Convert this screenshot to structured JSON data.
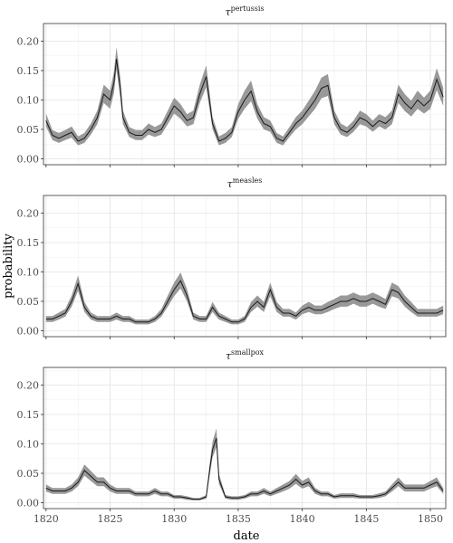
{
  "chart_data": {
    "type": "line",
    "xlabel": "date",
    "ylabel": "probability",
    "xlim": [
      1819.8,
      1851.2
    ],
    "ylim": [
      -0.01,
      0.23
    ],
    "x_ticks": [
      1820,
      1825,
      1830,
      1835,
      1840,
      1845,
      1850
    ],
    "y_ticks": [
      0.0,
      0.05,
      0.1,
      0.15,
      0.2
    ],
    "y_tick_labels": [
      "0.00",
      "0.05",
      "0.10",
      "0.15",
      "0.20"
    ],
    "grid": true,
    "band_color": "#999999",
    "line_color": "#1a1a1a",
    "panels": [
      {
        "label_base": "τ",
        "label_sup": "pertussis",
        "x": [
          1820.0,
          1820.5,
          1821.0,
          1821.5,
          1822.0,
          1822.5,
          1823.0,
          1823.5,
          1824.0,
          1824.5,
          1825.0,
          1825.3,
          1825.5,
          1825.8,
          1826.0,
          1826.5,
          1827.0,
          1827.5,
          1828.0,
          1828.5,
          1829.0,
          1829.5,
          1830.0,
          1830.5,
          1831.0,
          1831.5,
          1832.0,
          1832.5,
          1833.0,
          1833.5,
          1834.0,
          1834.5,
          1835.0,
          1835.5,
          1836.0,
          1836.5,
          1837.0,
          1837.5,
          1838.0,
          1838.5,
          1839.0,
          1839.5,
          1840.0,
          1840.5,
          1841.0,
          1841.5,
          1842.0,
          1842.5,
          1843.0,
          1843.5,
          1844.0,
          1844.5,
          1845.0,
          1845.5,
          1846.0,
          1846.5,
          1847.0,
          1847.5,
          1848.0,
          1848.5,
          1849.0,
          1849.5,
          1850.0,
          1850.5,
          1851.0
        ],
        "y": [
          0.065,
          0.04,
          0.035,
          0.04,
          0.045,
          0.03,
          0.035,
          0.05,
          0.07,
          0.11,
          0.1,
          0.13,
          0.17,
          0.12,
          0.07,
          0.045,
          0.04,
          0.04,
          0.05,
          0.045,
          0.05,
          0.07,
          0.09,
          0.08,
          0.065,
          0.07,
          0.11,
          0.14,
          0.06,
          0.03,
          0.035,
          0.045,
          0.08,
          0.1,
          0.115,
          0.08,
          0.06,
          0.055,
          0.035,
          0.03,
          0.045,
          0.06,
          0.07,
          0.085,
          0.1,
          0.12,
          0.125,
          0.07,
          0.05,
          0.045,
          0.055,
          0.07,
          0.065,
          0.055,
          0.065,
          0.06,
          0.07,
          0.11,
          0.095,
          0.085,
          0.1,
          0.09,
          0.1,
          0.135,
          0.105
        ],
        "lower": [
          0.055,
          0.032,
          0.027,
          0.032,
          0.036,
          0.023,
          0.027,
          0.041,
          0.059,
          0.095,
          0.085,
          0.112,
          0.152,
          0.103,
          0.059,
          0.037,
          0.032,
          0.032,
          0.041,
          0.037,
          0.041,
          0.059,
          0.077,
          0.068,
          0.055,
          0.059,
          0.095,
          0.122,
          0.05,
          0.023,
          0.027,
          0.037,
          0.068,
          0.085,
          0.098,
          0.068,
          0.05,
          0.046,
          0.027,
          0.023,
          0.037,
          0.05,
          0.059,
          0.072,
          0.085,
          0.103,
          0.107,
          0.059,
          0.041,
          0.037,
          0.046,
          0.059,
          0.055,
          0.046,
          0.055,
          0.05,
          0.059,
          0.095,
          0.081,
          0.072,
          0.085,
          0.077,
          0.085,
          0.117,
          0.09
        ],
        "upper": [
          0.077,
          0.049,
          0.044,
          0.049,
          0.055,
          0.038,
          0.044,
          0.06,
          0.082,
          0.126,
          0.116,
          0.148,
          0.19,
          0.138,
          0.082,
          0.054,
          0.049,
          0.049,
          0.06,
          0.054,
          0.06,
          0.082,
          0.104,
          0.093,
          0.076,
          0.082,
          0.126,
          0.159,
          0.071,
          0.038,
          0.044,
          0.054,
          0.093,
          0.116,
          0.133,
          0.093,
          0.071,
          0.065,
          0.044,
          0.038,
          0.054,
          0.071,
          0.082,
          0.099,
          0.116,
          0.138,
          0.144,
          0.082,
          0.06,
          0.054,
          0.065,
          0.082,
          0.076,
          0.065,
          0.076,
          0.071,
          0.082,
          0.126,
          0.11,
          0.099,
          0.116,
          0.104,
          0.116,
          0.154,
          0.121
        ]
      },
      {
        "label_base": "τ",
        "label_sup": "measles",
        "x": [
          1820.0,
          1820.5,
          1821.0,
          1821.5,
          1822.0,
          1822.5,
          1823.0,
          1823.5,
          1824.0,
          1824.5,
          1825.0,
          1825.5,
          1826.0,
          1826.5,
          1827.0,
          1827.5,
          1828.0,
          1828.5,
          1829.0,
          1829.5,
          1830.0,
          1830.5,
          1831.0,
          1831.5,
          1832.0,
          1832.5,
          1833.0,
          1833.5,
          1834.0,
          1834.5,
          1835.0,
          1835.5,
          1836.0,
          1836.5,
          1837.0,
          1837.5,
          1838.0,
          1838.5,
          1839.0,
          1839.5,
          1840.0,
          1840.5,
          1841.0,
          1841.5,
          1842.0,
          1842.5,
          1843.0,
          1843.5,
          1844.0,
          1844.5,
          1845.0,
          1845.5,
          1846.0,
          1846.5,
          1847.0,
          1847.5,
          1848.0,
          1848.5,
          1849.0,
          1849.5,
          1850.0,
          1850.5,
          1851.0
        ],
        "y": [
          0.02,
          0.02,
          0.025,
          0.03,
          0.05,
          0.08,
          0.04,
          0.025,
          0.02,
          0.02,
          0.02,
          0.025,
          0.02,
          0.02,
          0.015,
          0.015,
          0.015,
          0.02,
          0.03,
          0.05,
          0.07,
          0.085,
          0.06,
          0.025,
          0.02,
          0.02,
          0.04,
          0.025,
          0.02,
          0.015,
          0.015,
          0.02,
          0.04,
          0.05,
          0.04,
          0.07,
          0.04,
          0.03,
          0.03,
          0.025,
          0.035,
          0.04,
          0.035,
          0.035,
          0.04,
          0.045,
          0.05,
          0.05,
          0.055,
          0.05,
          0.05,
          0.055,
          0.05,
          0.045,
          0.07,
          0.065,
          0.05,
          0.04,
          0.03,
          0.03,
          0.03,
          0.03,
          0.035
        ],
        "lower": [
          0.015,
          0.015,
          0.019,
          0.024,
          0.041,
          0.068,
          0.032,
          0.019,
          0.015,
          0.015,
          0.015,
          0.019,
          0.015,
          0.015,
          0.011,
          0.011,
          0.011,
          0.015,
          0.024,
          0.041,
          0.059,
          0.072,
          0.05,
          0.019,
          0.015,
          0.015,
          0.032,
          0.019,
          0.015,
          0.011,
          0.011,
          0.015,
          0.032,
          0.041,
          0.032,
          0.059,
          0.032,
          0.024,
          0.024,
          0.019,
          0.028,
          0.032,
          0.028,
          0.028,
          0.032,
          0.037,
          0.041,
          0.041,
          0.046,
          0.041,
          0.041,
          0.046,
          0.041,
          0.037,
          0.059,
          0.055,
          0.041,
          0.032,
          0.024,
          0.024,
          0.024,
          0.024,
          0.028
        ],
        "upper": [
          0.025,
          0.025,
          0.031,
          0.037,
          0.06,
          0.094,
          0.049,
          0.031,
          0.025,
          0.025,
          0.025,
          0.031,
          0.025,
          0.025,
          0.019,
          0.019,
          0.019,
          0.025,
          0.037,
          0.06,
          0.082,
          0.099,
          0.071,
          0.031,
          0.025,
          0.025,
          0.049,
          0.031,
          0.025,
          0.019,
          0.019,
          0.025,
          0.049,
          0.06,
          0.049,
          0.082,
          0.049,
          0.037,
          0.037,
          0.031,
          0.043,
          0.049,
          0.043,
          0.043,
          0.049,
          0.054,
          0.06,
          0.06,
          0.065,
          0.06,
          0.06,
          0.065,
          0.06,
          0.054,
          0.082,
          0.076,
          0.06,
          0.049,
          0.037,
          0.037,
          0.037,
          0.037,
          0.043
        ]
      },
      {
        "label_base": "τ",
        "label_sup": "smallpox",
        "x": [
          1820.0,
          1820.5,
          1821.0,
          1821.5,
          1822.0,
          1822.5,
          1823.0,
          1823.5,
          1824.0,
          1824.5,
          1825.0,
          1825.5,
          1826.0,
          1826.5,
          1827.0,
          1827.5,
          1828.0,
          1828.5,
          1829.0,
          1829.5,
          1830.0,
          1830.5,
          1831.0,
          1831.5,
          1832.0,
          1832.5,
          1832.8,
          1833.0,
          1833.3,
          1833.5,
          1834.0,
          1834.5,
          1835.0,
          1835.5,
          1836.0,
          1836.5,
          1837.0,
          1837.5,
          1838.0,
          1838.5,
          1839.0,
          1839.5,
          1840.0,
          1840.5,
          1841.0,
          1841.5,
          1842.0,
          1842.5,
          1843.0,
          1843.5,
          1844.0,
          1844.5,
          1845.0,
          1845.5,
          1846.0,
          1846.5,
          1847.0,
          1847.5,
          1848.0,
          1848.5,
          1849.0,
          1849.5,
          1850.0,
          1850.5,
          1851.0
        ],
        "y": [
          0.025,
          0.02,
          0.02,
          0.02,
          0.025,
          0.035,
          0.055,
          0.045,
          0.035,
          0.035,
          0.025,
          0.02,
          0.02,
          0.02,
          0.015,
          0.015,
          0.015,
          0.02,
          0.015,
          0.015,
          0.01,
          0.01,
          0.008,
          0.006,
          0.006,
          0.01,
          0.06,
          0.09,
          0.11,
          0.04,
          0.01,
          0.008,
          0.008,
          0.01,
          0.015,
          0.015,
          0.02,
          0.015,
          0.02,
          0.025,
          0.03,
          0.04,
          0.03,
          0.035,
          0.02,
          0.015,
          0.015,
          0.01,
          0.012,
          0.012,
          0.012,
          0.01,
          0.01,
          0.01,
          0.012,
          0.015,
          0.025,
          0.035,
          0.025,
          0.025,
          0.025,
          0.025,
          0.03,
          0.035,
          0.02
        ],
        "lower": [
          0.019,
          0.015,
          0.015,
          0.015,
          0.019,
          0.028,
          0.046,
          0.037,
          0.028,
          0.028,
          0.019,
          0.015,
          0.015,
          0.015,
          0.011,
          0.011,
          0.011,
          0.015,
          0.011,
          0.011,
          0.007,
          0.007,
          0.005,
          0.004,
          0.004,
          0.007,
          0.05,
          0.077,
          0.094,
          0.032,
          0.007,
          0.005,
          0.005,
          0.007,
          0.011,
          0.011,
          0.015,
          0.011,
          0.015,
          0.019,
          0.024,
          0.032,
          0.024,
          0.028,
          0.015,
          0.011,
          0.011,
          0.007,
          0.008,
          0.008,
          0.008,
          0.007,
          0.007,
          0.007,
          0.008,
          0.011,
          0.019,
          0.028,
          0.019,
          0.019,
          0.019,
          0.019,
          0.024,
          0.028,
          0.015
        ],
        "upper": [
          0.031,
          0.025,
          0.025,
          0.025,
          0.031,
          0.043,
          0.065,
          0.054,
          0.043,
          0.043,
          0.031,
          0.025,
          0.025,
          0.025,
          0.019,
          0.019,
          0.019,
          0.025,
          0.019,
          0.019,
          0.013,
          0.013,
          0.011,
          0.008,
          0.008,
          0.013,
          0.071,
          0.104,
          0.126,
          0.049,
          0.013,
          0.011,
          0.011,
          0.013,
          0.019,
          0.019,
          0.025,
          0.019,
          0.025,
          0.031,
          0.037,
          0.049,
          0.037,
          0.043,
          0.025,
          0.019,
          0.019,
          0.013,
          0.016,
          0.016,
          0.016,
          0.013,
          0.013,
          0.013,
          0.016,
          0.019,
          0.031,
          0.043,
          0.031,
          0.031,
          0.031,
          0.031,
          0.037,
          0.043,
          0.025
        ]
      }
    ]
  }
}
